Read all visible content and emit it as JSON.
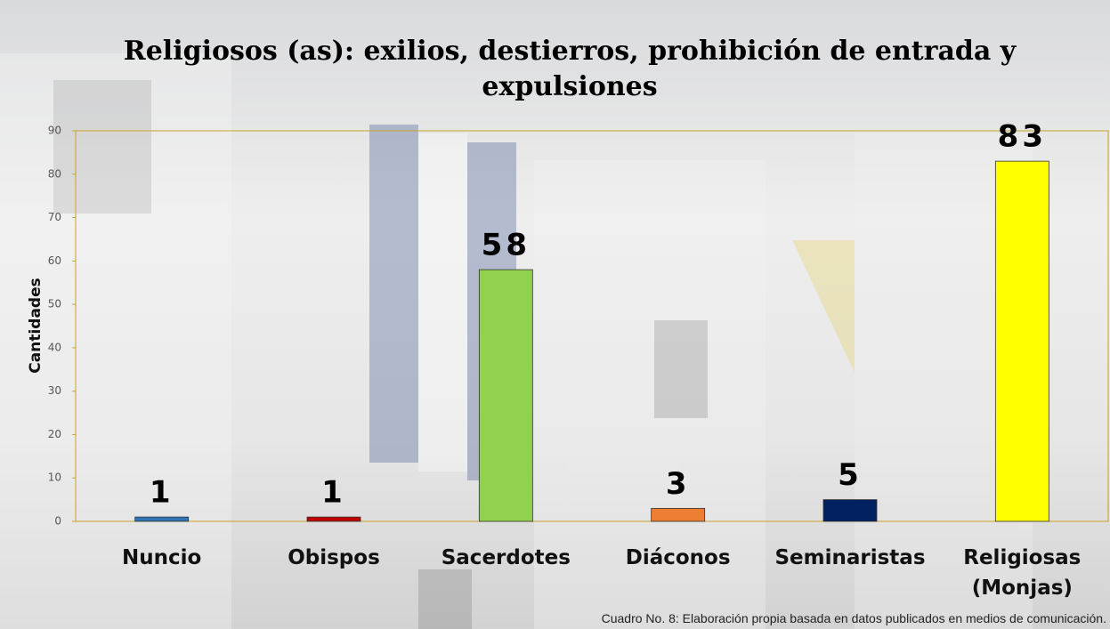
{
  "chart_data": {
    "type": "bar",
    "title": "Religiosos (as): exilios, destierros, prohibición de entrada y expulsiones",
    "y_label": "Cantidades",
    "categories": [
      "Nuncio",
      "Obispos",
      "Sacerdotes",
      "Diáconos",
      "Seminaristas",
      "Religiosas (Monjas)"
    ],
    "values": [
      1,
      1,
      58,
      3,
      5,
      83
    ],
    "colors": [
      "#2e75b6",
      "#c00000",
      "#92d050",
      "#ed7d31",
      "#002060",
      "#ffff00"
    ],
    "ylim": [
      0,
      90
    ],
    "yticks": [
      0,
      10,
      20,
      30,
      40,
      50,
      60,
      70,
      80,
      90
    ],
    "grid": false,
    "note": "Cuadro No. 8: Elaboración propia basada en datos publicados en medios de comunicación."
  }
}
